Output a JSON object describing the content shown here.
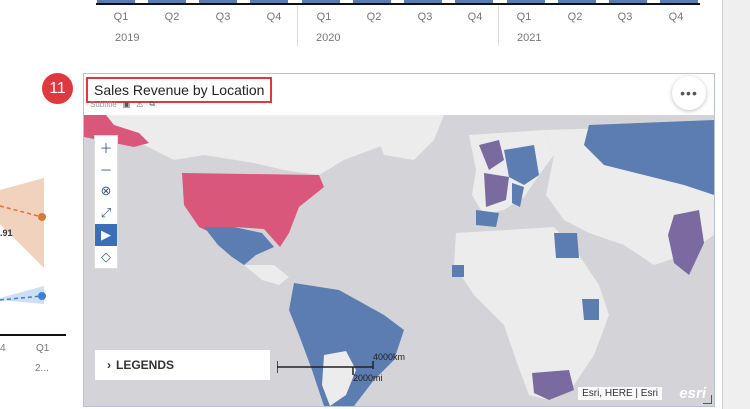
{
  "top_chart": {
    "quarters": [
      "Q1",
      "Q2",
      "Q3",
      "Q4",
      "Q1",
      "Q2",
      "Q3",
      "Q4",
      "Q1",
      "Q2",
      "Q3",
      "Q4"
    ],
    "years": [
      "2019",
      "2020",
      "2021"
    ]
  },
  "left_chart": {
    "value_label": ".91",
    "tick_left": "4",
    "tick_right": "Q1",
    "year_right": "2..."
  },
  "step": {
    "number": "11"
  },
  "card": {
    "title": "Sales Revenue by Location",
    "subtitle": "Subtitle",
    "more_label": "•••"
  },
  "map": {
    "legends_label": "LEGENDS",
    "scale_km": "4000km",
    "scale_mi": "2000mi",
    "attribution": "Esri, HERE | Esri",
    "logo": "esri",
    "tools": [
      "zoom-in-icon",
      "zoom-out-icon",
      "reset-icon",
      "fullscreen-icon",
      "pointer-icon",
      "lasso-icon"
    ]
  },
  "colors": {
    "accent_red": "#e0383e",
    "high": "#d9577a",
    "mid": "#7a6aa0",
    "low": "#5b7db1",
    "land": "#ececec",
    "water": "#d4d4d8"
  }
}
